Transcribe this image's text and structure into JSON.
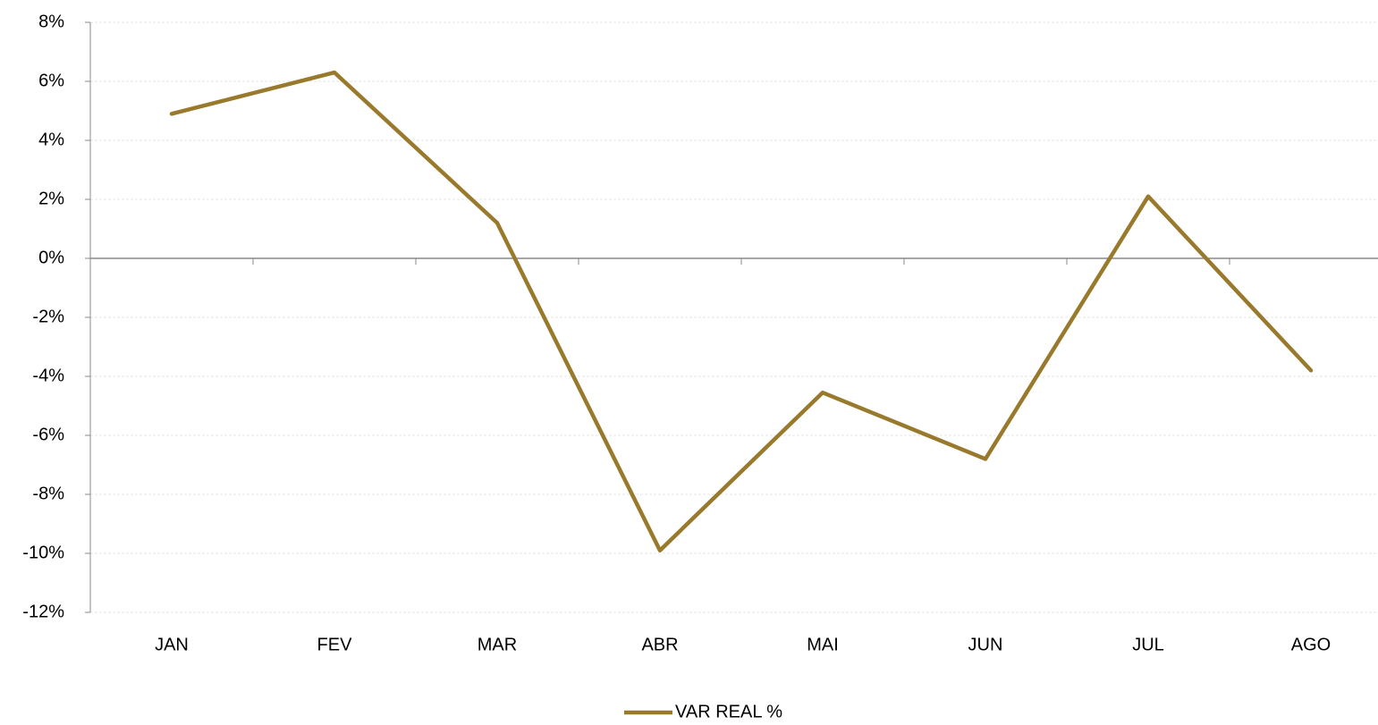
{
  "chart_data": {
    "type": "line",
    "categories": [
      "JAN",
      "FEV",
      "MAR",
      "ABR",
      "MAI",
      "JUN",
      "JUL",
      "AGO"
    ],
    "series": [
      {
        "name": "VAR REAL %",
        "color": "#997a2d",
        "values": [
          4.9,
          6.3,
          1.2,
          -9.9,
          -4.55,
          -6.8,
          2.1,
          -3.8
        ]
      }
    ],
    "ylim": [
      -12,
      8
    ],
    "yticks": [
      {
        "value": -12,
        "label": "-12%"
      },
      {
        "value": -10,
        "label": "-10%"
      },
      {
        "value": -8,
        "label": "-8%"
      },
      {
        "value": -6,
        "label": "-6%"
      },
      {
        "value": -4,
        "label": "-4%"
      },
      {
        "value": -2,
        "label": "-2%"
      },
      {
        "value": 0,
        "label": "0%"
      },
      {
        "value": 2,
        "label": "2%"
      },
      {
        "value": 4,
        "label": "4%"
      },
      {
        "value": 6,
        "label": "6%"
      },
      {
        "value": 8,
        "label": "8%"
      }
    ],
    "grid": true,
    "legend": "bottom"
  }
}
